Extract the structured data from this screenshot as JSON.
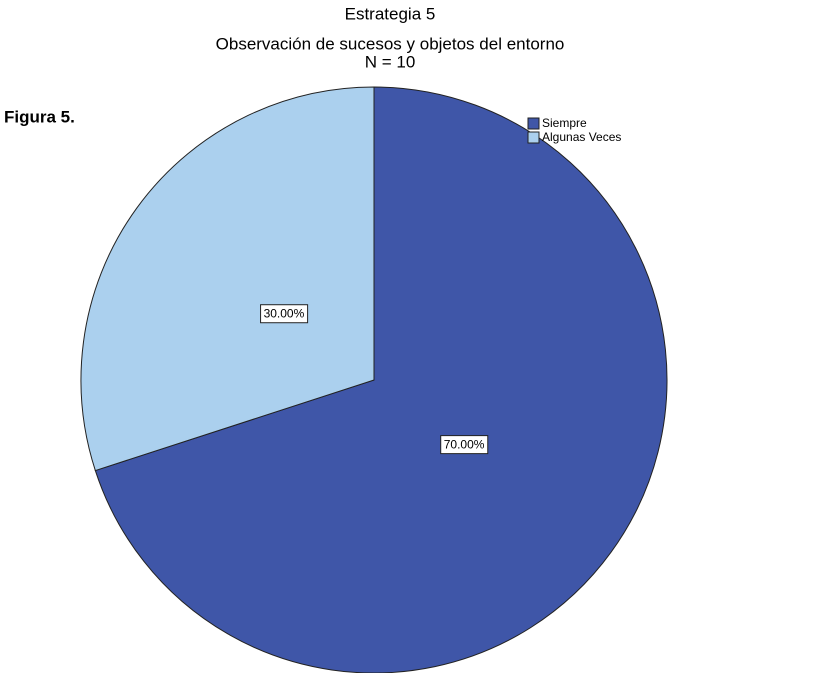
{
  "chart_data": {
    "type": "pie",
    "title": "Estrategia 5",
    "subtitle": "Observación de sucesos y objetos del entorno",
    "note": "N = 10",
    "annotation": "Figura 5.",
    "categories": [
      "Siempre",
      "Algunas Veces"
    ],
    "values": [
      70,
      30
    ],
    "value_labels": [
      "70.00%",
      "30.00%"
    ],
    "colors": [
      "#3f56a8",
      "#abd0ee"
    ],
    "legend": "top-right"
  }
}
